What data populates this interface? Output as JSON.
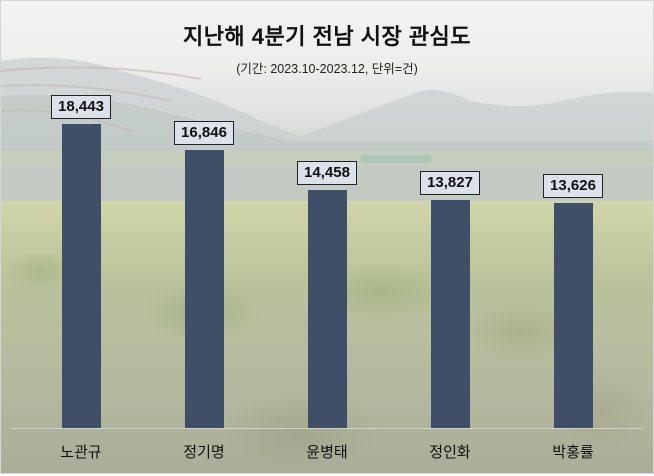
{
  "chart_data": {
    "type": "bar",
    "title": "지난해 4분기 전남 시장 관심도",
    "subtitle": "(기간: 2023.10-2023.12, 단위=건)",
    "categories": [
      "노관규",
      "정기명",
      "윤병태",
      "정인화",
      "박홍률"
    ],
    "values": [
      18443,
      16846,
      14458,
      13827,
      13626
    ],
    "value_labels": [
      "18,443",
      "16,846",
      "14,458",
      "13,827",
      "13,626"
    ],
    "xlabel": "",
    "ylabel": "",
    "ylim": [
      0,
      20000
    ],
    "grid": false,
    "legend": null,
    "bar_color": "#404f68"
  }
}
